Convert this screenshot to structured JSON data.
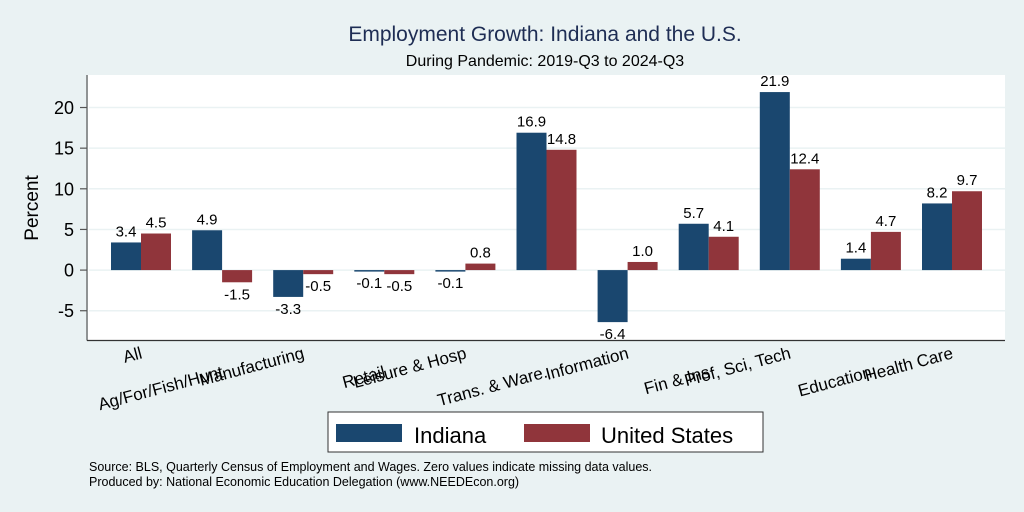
{
  "chart_data": {
    "type": "bar",
    "title": "Employment Growth: Indiana and the U.S.",
    "subtitle": "During Pandemic: 2019-Q3 to 2024-Q3",
    "xlabel": "",
    "ylabel": "Percent",
    "ylim": [
      -8.6,
      24
    ],
    "yticks": [
      -5,
      0,
      5,
      10,
      15,
      20
    ],
    "ytick_labels": [
      "-5",
      "0",
      "5",
      "10",
      "15",
      "20"
    ],
    "grid": true,
    "categories": [
      "All",
      "Ag/For/Fish/Hunt",
      "Manufacturing",
      "Retail",
      "Leisure & Hosp",
      "Trans. & Ware.",
      "Information",
      "Fin & Ins",
      "Prof, Sci, Tech",
      "Education",
      "Health Care"
    ],
    "series": [
      {
        "name": "Indiana",
        "color": "#1a476f",
        "values": [
          3.4,
          4.9,
          -3.3,
          -0.1,
          -0.1,
          16.9,
          -6.4,
          5.7,
          21.9,
          1.4,
          8.2
        ],
        "labels": [
          "3.4",
          "4.9",
          "-3.3",
          "-0.1",
          "-0.1",
          "16.9",
          "-6.4",
          "5.7",
          "21.9",
          "1.4",
          "8.2"
        ]
      },
      {
        "name": "United States",
        "color": "#90353b",
        "values": [
          4.5,
          -1.5,
          -0.5,
          -0.5,
          0.8,
          14.8,
          1.0,
          4.1,
          12.4,
          4.7,
          9.7
        ],
        "labels": [
          "4.5",
          "-1.5",
          "-0.5",
          "-0.5",
          "0.8",
          "14.8",
          "1.0",
          "4.1",
          "12.4",
          "4.7",
          "9.7"
        ]
      }
    ],
    "legend": {
      "placement": "bottom",
      "entries": [
        "Indiana",
        "United States"
      ]
    },
    "notes": [
      "Source: BLS, Quarterly Census of Employment and Wages. Zero values indicate missing data values.",
      "Produced by: National Economic Education Delegation (www.NEEDEcon.org)"
    ]
  },
  "colors": {
    "background": "#eaf2f3",
    "plot_background": "#ffffff",
    "gridline": "#eaf2f3",
    "title": "#1e2d54"
  }
}
